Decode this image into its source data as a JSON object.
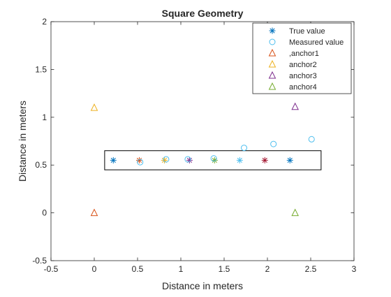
{
  "chart_data": {
    "type": "scatter",
    "title": "Square Geometry",
    "xlabel": "Distance in meters",
    "ylabel": "Distance in meters",
    "xlim": [
      -0.5,
      3
    ],
    "ylim": [
      -0.5,
      2
    ],
    "xticks": [
      -0.5,
      0,
      0.5,
      1,
      1.5,
      2,
      2.5,
      3
    ],
    "xtick_labels": [
      "-0.5",
      "0",
      "0.5",
      "1",
      "1.5",
      "2",
      "2.5",
      "3"
    ],
    "yticks": [
      -0.5,
      0,
      0.5,
      1,
      1.5,
      2
    ],
    "ytick_labels": [
      "-0.5",
      "0",
      "0.5",
      "1",
      "1.5",
      "2"
    ],
    "grid": false,
    "legend_position": "top-right",
    "series": [
      {
        "name": "True value",
        "marker": "asterisk",
        "color_cycle": [
          "#0072BD",
          "#D95319",
          "#EDB120",
          "#7E2F8E",
          "#77AC30",
          "#4DBEEE",
          "#A2142F",
          "#0072BD"
        ],
        "x": [
          0.22,
          0.52,
          0.81,
          1.1,
          1.39,
          1.68,
          1.97,
          2.26
        ],
        "y": [
          0.55,
          0.55,
          0.55,
          0.55,
          0.55,
          0.55,
          0.55,
          0.55
        ]
      },
      {
        "name": "Measured value",
        "marker": "circle",
        "color": "#4DBEEE",
        "x": [
          0.53,
          0.83,
          1.08,
          1.38,
          1.73,
          2.07,
          2.51
        ],
        "y": [
          0.53,
          0.56,
          0.56,
          0.57,
          0.68,
          0.72,
          0.77
        ]
      },
      {
        "name": ",anchor1",
        "marker": "triangle",
        "color": "#D95319",
        "x": [
          0
        ],
        "y": [
          0
        ]
      },
      {
        "name": "anchor2",
        "marker": "triangle",
        "color": "#EDB120",
        "x": [
          0
        ],
        "y": [
          1.1
        ]
      },
      {
        "name": "anchor3",
        "marker": "triangle",
        "color": "#7E2F8E",
        "x": [
          2.32
        ],
        "y": [
          1.11
        ]
      },
      {
        "name": "anchor4",
        "marker": "triangle",
        "color": "#77AC30",
        "x": [
          2.32
        ],
        "y": [
          0
        ]
      }
    ],
    "rectangles": [
      {
        "x": [
          0.12,
          2.62
        ],
        "y": [
          0.45,
          0.65
        ],
        "color": "#000000"
      }
    ]
  }
}
